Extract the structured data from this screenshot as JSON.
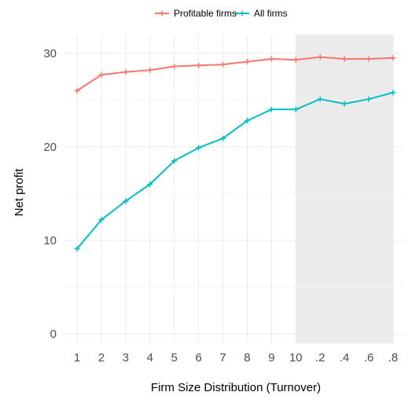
{
  "chart_data": {
    "type": "line",
    "categories": [
      "1",
      "2",
      "3",
      "4",
      "5",
      "6",
      "7",
      "8",
      "9",
      "10",
      ".2",
      ".4",
      ".6",
      ".8"
    ],
    "series": [
      {
        "name": "Profitable firms",
        "color": "#f8766d",
        "values": [
          26.0,
          27.7,
          28.0,
          28.2,
          28.6,
          28.7,
          28.8,
          29.1,
          29.4,
          29.3,
          29.6,
          29.4,
          29.4,
          29.5
        ]
      },
      {
        "name": "All firms",
        "color": "#00bfc4",
        "values": [
          9.1,
          12.2,
          14.2,
          16.0,
          18.5,
          19.9,
          20.9,
          22.8,
          24.0,
          24.0,
          25.1,
          24.6,
          25.1,
          25.8
        ]
      }
    ],
    "xlabel": "Firm Size Distribution (Turnover)",
    "ylabel": "Net profit",
    "ylim": [
      -1,
      32
    ],
    "yticks": [
      0,
      10,
      20,
      30
    ],
    "grid": true,
    "legend_position": "top",
    "highlight": {
      "from": "10",
      "to": ".8",
      "color": "#ebebeb"
    }
  }
}
